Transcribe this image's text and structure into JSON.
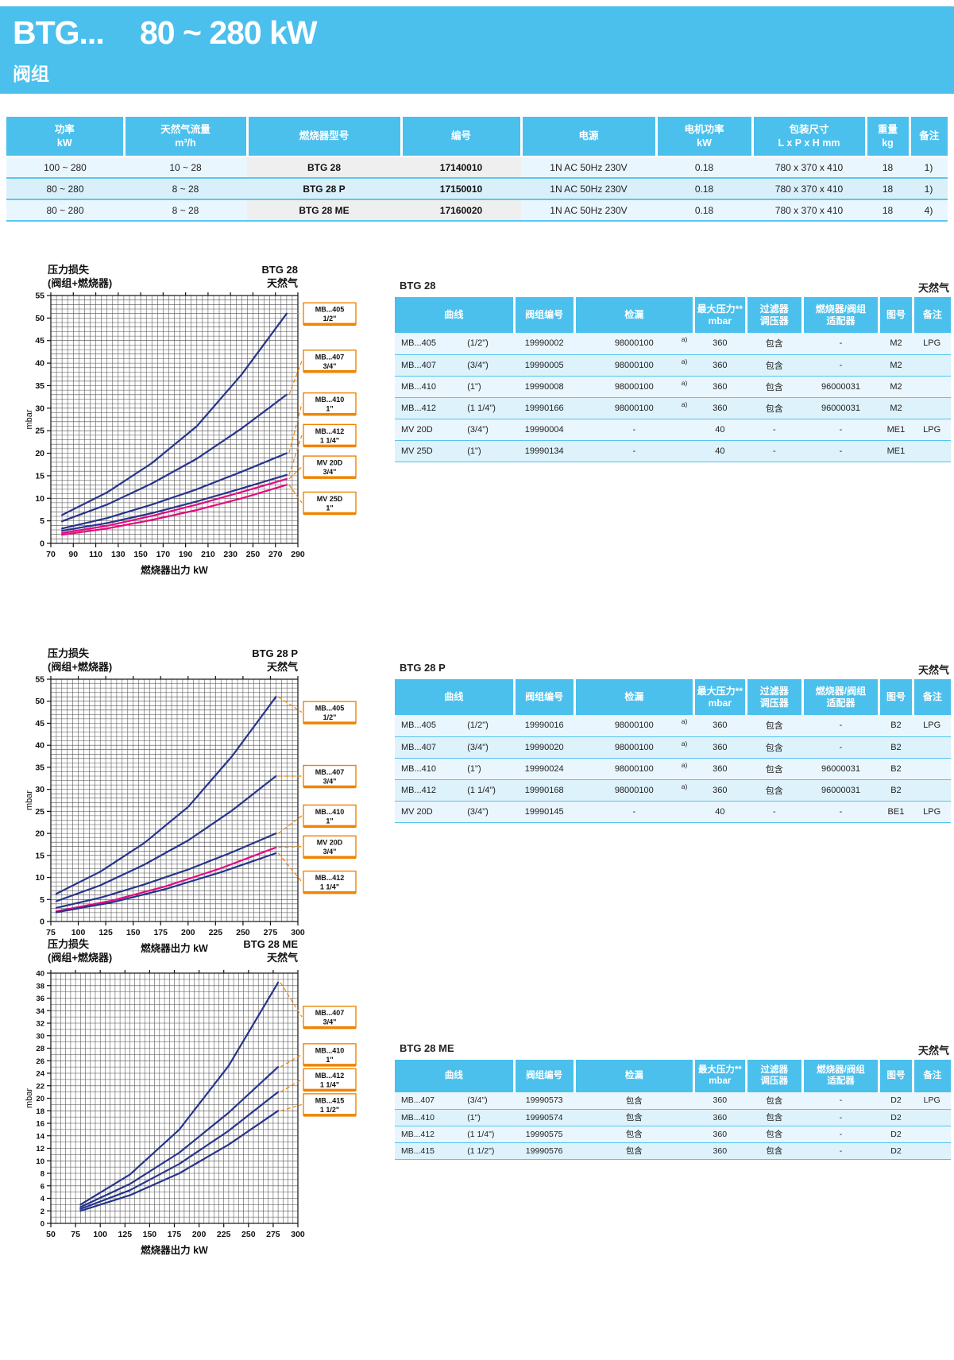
{
  "colors": {
    "cyan": "#4BC0ED",
    "row_light_blue": "#EAF6FD",
    "row_mid_blue": "#D9F0FA",
    "gray_column": "#EFEFEF",
    "curve_navy": "#27348B",
    "curve_pink": "#E5097F",
    "legend_orange": "#F08300"
  },
  "banner": {
    "model": "BTG...",
    "power_range": "80 ~ 280 kW",
    "subtitle": "阀组"
  },
  "top_table": {
    "headers": [
      "功率\nkW",
      "天然气流量\nm³/h",
      "燃烧器型号",
      "编号",
      "电源",
      "电机功率\nkW",
      "包装尺寸\nL x P x H  mm",
      "重量\nkg",
      "备注"
    ],
    "rows": [
      [
        "100 ~ 280",
        "10 ~ 28",
        "BTG 28",
        "17140010",
        "1N AC 50Hz 230V",
        "0.18",
        "780 x 370 x 410",
        "18",
        "1)"
      ],
      [
        "80 ~ 280",
        "8 ~ 28",
        "BTG 28 P",
        "17150010",
        "1N AC 50Hz 230V",
        "0.18",
        "780 x 370 x 410",
        "18",
        "1)"
      ],
      [
        "80 ~ 280",
        "8 ~ 28",
        "BTG 28 ME",
        "17160020",
        "1N AC 50Hz 230V",
        "0.18",
        "780 x 370 x 410",
        "18",
        "4)"
      ]
    ]
  },
  "sections": [
    {
      "title": "BTG 28",
      "gas": "天然气",
      "headers": {
        "curve": "曲线",
        "group_no": "阀组编号",
        "leak": "检漏",
        "max_pressure": "最大压力**\nmbar",
        "filter": "过滤器\n调压器",
        "adapter": "燃烧器/阀组\n适配器",
        "figure": "图号",
        "note": "备注"
      },
      "rows": [
        {
          "model": "MB...405",
          "size": "(1/2\")",
          "group_no": "19990002",
          "leak": "98000100",
          "leak_sup": "a)",
          "max_pressure": "360",
          "filter": "包含",
          "adapter": "-",
          "figure": "M2",
          "note": "LPG"
        },
        {
          "model": "MB...407",
          "size": "(3/4\")",
          "group_no": "19990005",
          "leak": "98000100",
          "leak_sup": "a)",
          "max_pressure": "360",
          "filter": "包含",
          "adapter": "-",
          "figure": "M2",
          "note": ""
        },
        {
          "model": "MB...410",
          "size": "(1\")",
          "group_no": "19990008",
          "leak": "98000100",
          "leak_sup": "a)",
          "max_pressure": "360",
          "filter": "包含",
          "adapter": "96000031",
          "figure": "M2",
          "note": ""
        },
        {
          "model": "MB...412",
          "size": "(1 1/4\")",
          "group_no": "19990166",
          "leak": "98000100",
          "leak_sup": "a)",
          "max_pressure": "360",
          "filter": "包含",
          "adapter": "96000031",
          "figure": "M2",
          "note": ""
        },
        {
          "model": "MV  20D",
          "size": "(3/4\")",
          "group_no": "19990004",
          "leak": "-",
          "leak_sup": "",
          "max_pressure": "40",
          "filter": "-",
          "adapter": "-",
          "figure": "ME1",
          "note": "LPG"
        },
        {
          "model": "MV  25D",
          "size": "(1\")",
          "group_no": "19990134",
          "leak": "-",
          "leak_sup": "",
          "max_pressure": "40",
          "filter": "-",
          "adapter": "-",
          "figure": "ME1",
          "note": ""
        }
      ]
    },
    {
      "title": "BTG 28 P",
      "gas": "天然气",
      "headers": {
        "curve": "曲线",
        "group_no": "阀组编号",
        "leak": "检漏",
        "max_pressure": "最大压力**\nmbar",
        "filter": "过滤器\n调压器",
        "adapter": "燃烧器/阀组\n适配器",
        "figure": "图号",
        "note": "备注"
      },
      "rows": [
        {
          "model": "MB...405",
          "size": "(1/2\")",
          "group_no": "19990016",
          "leak": "98000100",
          "leak_sup": "a)",
          "max_pressure": "360",
          "filter": "包含",
          "adapter": "-",
          "figure": "B2",
          "note": "LPG"
        },
        {
          "model": "MB...407",
          "size": "(3/4\")",
          "group_no": "19990020",
          "leak": "98000100",
          "leak_sup": "a)",
          "max_pressure": "360",
          "filter": "包含",
          "adapter": "-",
          "figure": "B2",
          "note": ""
        },
        {
          "model": "MB...410",
          "size": "(1\")",
          "group_no": "19990024",
          "leak": "98000100",
          "leak_sup": "a)",
          "max_pressure": "360",
          "filter": "包含",
          "adapter": "96000031",
          "figure": "B2",
          "note": ""
        },
        {
          "model": "MB...412",
          "size": "(1 1/4\")",
          "group_no": "19990168",
          "leak": "98000100",
          "leak_sup": "a)",
          "max_pressure": "360",
          "filter": "包含",
          "adapter": "96000031",
          "figure": "B2",
          "note": ""
        },
        {
          "model": "MV  20D",
          "size": "(3/4\")",
          "group_no": "19990145",
          "leak": "-",
          "leak_sup": "",
          "max_pressure": "40",
          "filter": "-",
          "adapter": "-",
          "figure": "BE1",
          "note": "LPG"
        }
      ]
    },
    {
      "title": "BTG 28 ME",
      "gas": "天然气",
      "headers": {
        "curve": "曲线",
        "group_no": "阀组编号",
        "leak": "检漏",
        "max_pressure": "最大压力**\nmbar",
        "filter": "过滤器\n调压器",
        "adapter": "燃烧器/阀组\n适配器",
        "figure": "图号",
        "note": "备注"
      },
      "rows": [
        {
          "model": "MB...407",
          "size": "(3/4\")",
          "group_no": "19990573",
          "leak": "包含",
          "leak_sup": "",
          "max_pressure": "360",
          "filter": "包含",
          "adapter": "-",
          "figure": "D2",
          "note": "LPG"
        },
        {
          "model": "MB...410",
          "size": "(1\")",
          "group_no": "19990574",
          "leak": "包含",
          "leak_sup": "",
          "max_pressure": "360",
          "filter": "包含",
          "adapter": "-",
          "figure": "D2",
          "note": ""
        },
        {
          "model": "MB...412",
          "size": "(1 1/4\")",
          "group_no": "19990575",
          "leak": "包含",
          "leak_sup": "",
          "max_pressure": "360",
          "filter": "包含",
          "adapter": "-",
          "figure": "D2",
          "note": ""
        },
        {
          "model": "MB...415",
          "size": "(1 1/2\")",
          "group_no": "19990576",
          "leak": "包含",
          "leak_sup": "",
          "max_pressure": "360",
          "filter": "包含",
          "adapter": "-",
          "figure": "D2",
          "note": ""
        }
      ]
    }
  ],
  "chart_data": [
    {
      "type": "line",
      "title_left": [
        "压力损失",
        "(阀组+燃烧器)"
      ],
      "title_right": [
        "BTG 28",
        "天然气"
      ],
      "ylabel": "mbar",
      "xlabel": "燃烧器出力  kW",
      "xlim": [
        70,
        290
      ],
      "xtick_step": 20,
      "xgrid_step": 5,
      "ylim": [
        0,
        55
      ],
      "ytick_step": 5,
      "ygrid_step": 1,
      "grid": true,
      "legend_position": "right",
      "series": [
        {
          "name": "MB...405",
          "size": "1/2\"",
          "color": "#27348B",
          "legend_y": 51,
          "points": [
            [
              80,
              6.3
            ],
            [
              120,
              11.3
            ],
            [
              160,
              17.8
            ],
            [
              200,
              26
            ],
            [
              240,
              37.5
            ],
            [
              280,
              51
            ]
          ]
        },
        {
          "name": "MB...407",
          "size": "3/4\"",
          "color": "#27348B",
          "legend_y": 40.5,
          "points": [
            [
              80,
              4.9
            ],
            [
              120,
              8.6
            ],
            [
              160,
              13.3
            ],
            [
              200,
              18.8
            ],
            [
              240,
              25.5
            ],
            [
              280,
              33
            ]
          ]
        },
        {
          "name": "MB...410",
          "size": "1\"",
          "color": "#27348B",
          "legend_y": 31,
          "points": [
            [
              80,
              3.3
            ],
            [
              120,
              5.6
            ],
            [
              160,
              8.6
            ],
            [
              200,
              12
            ],
            [
              240,
              15.9
            ],
            [
              280,
              20
            ]
          ]
        },
        {
          "name": "MB...412",
          "size": "1 1/4\"",
          "color": "#27348B",
          "legend_y": 24,
          "points": [
            [
              80,
              2.8
            ],
            [
              120,
              4.5
            ],
            [
              160,
              6.7
            ],
            [
              200,
              9.3
            ],
            [
              240,
              12.2
            ],
            [
              280,
              15.2
            ]
          ]
        },
        {
          "name": "MV  20D",
          "size": "3/4\"",
          "color": "#E5097F",
          "legend_y": 17,
          "points": [
            [
              80,
              2.3
            ],
            [
              120,
              3.9
            ],
            [
              160,
              6.1
            ],
            [
              200,
              8.6
            ],
            [
              240,
              11.4
            ],
            [
              280,
              14.3
            ]
          ]
        },
        {
          "name": "MV  25D",
          "size": "1\"",
          "color": "#E5097F",
          "legend_y": 9,
          "points": [
            [
              80,
              1.9
            ],
            [
              120,
              3.3
            ],
            [
              160,
              5.2
            ],
            [
              200,
              7.4
            ],
            [
              240,
              10
            ],
            [
              280,
              13
            ]
          ]
        }
      ]
    },
    {
      "type": "line",
      "title_left": [
        "压力损失",
        "(阀组+燃烧器)"
      ],
      "title_right": [
        "BTG 28 P",
        "天然气"
      ],
      "ylabel": "mbar",
      "xlabel": "燃烧器出力  kW",
      "xlim": [
        75,
        300
      ],
      "xtick_step": 25,
      "xgrid_step": 5,
      "ylim": [
        0,
        55
      ],
      "ytick_step": 5,
      "ygrid_step": 1,
      "grid": true,
      "legend_position": "right",
      "series": [
        {
          "name": "MB...405",
          "size": "1/2\"",
          "color": "#27348B",
          "legend_y": 47.5,
          "points": [
            [
              80,
              6.3
            ],
            [
              120,
              11.3
            ],
            [
              160,
              17.8
            ],
            [
              200,
              26
            ],
            [
              240,
              37.5
            ],
            [
              280,
              51
            ]
          ]
        },
        {
          "name": "MB...407",
          "size": "3/4\"",
          "color": "#27348B",
          "legend_y": 33,
          "points": [
            [
              80,
              4.6
            ],
            [
              120,
              8.2
            ],
            [
              160,
              12.9
            ],
            [
              200,
              18.4
            ],
            [
              240,
              25.2
            ],
            [
              280,
              33
            ]
          ]
        },
        {
          "name": "MB...410",
          "size": "1\"",
          "color": "#27348B",
          "legend_y": 24,
          "points": [
            [
              80,
              3.1
            ],
            [
              120,
              5.4
            ],
            [
              160,
              8.4
            ],
            [
              200,
              11.8
            ],
            [
              240,
              15.7
            ],
            [
              280,
              20
            ]
          ]
        },
        {
          "name": "MV  20D",
          "size": "3/4\"",
          "color": "#E5097F",
          "legend_y": 17,
          "points": [
            [
              80,
              2.3
            ],
            [
              130,
              4.7
            ],
            [
              180,
              8
            ],
            [
              230,
              12.1
            ],
            [
              280,
              16.8
            ]
          ]
        },
        {
          "name": "MB...412",
          "size": "1 1/4\"",
          "color": "#27348B",
          "legend_y": 9,
          "points": [
            [
              80,
              2.1
            ],
            [
              130,
              4.3
            ],
            [
              180,
              7.4
            ],
            [
              230,
              11.2
            ],
            [
              280,
              15.5
            ]
          ]
        }
      ]
    },
    {
      "type": "line",
      "title_left": [
        "压力损失",
        "(阀组+燃烧器)"
      ],
      "title_right": [
        "BTG 28 ME",
        "天然气"
      ],
      "ylabel": "mbar",
      "xlabel": "燃烧器出力  kW",
      "xlim": [
        50,
        300
      ],
      "xtick_step": 25,
      "xgrid_step": 5,
      "ylim": [
        0,
        40
      ],
      "ytick_step": 2,
      "ygrid_step": 1,
      "grid": true,
      "legend_position": "right",
      "series": [
        {
          "name": "MB...407",
          "size": "3/4\"",
          "color": "#27348B",
          "legend_y": 33,
          "points": [
            [
              80,
              3
            ],
            [
              130,
              7.8
            ],
            [
              180,
              15
            ],
            [
              230,
              25.2
            ],
            [
              280,
              38.5
            ]
          ]
        },
        {
          "name": "MB...410",
          "size": "1\"",
          "color": "#27348B",
          "legend_y": 27,
          "points": [
            [
              80,
              2.6
            ],
            [
              130,
              6.3
            ],
            [
              180,
              11.3
            ],
            [
              230,
              17.7
            ],
            [
              280,
              25
            ]
          ]
        },
        {
          "name": "MB...412",
          "size": "1 1/4\"",
          "color": "#27348B",
          "legend_y": 23,
          "points": [
            [
              80,
              2.3
            ],
            [
              130,
              5.3
            ],
            [
              180,
              9.5
            ],
            [
              230,
              14.8
            ],
            [
              280,
              21
            ]
          ]
        },
        {
          "name": "MB...415",
          "size": "1 1/2\"",
          "color": "#27348B",
          "legend_y": 19,
          "points": [
            [
              80,
              2
            ],
            [
              130,
              4.5
            ],
            [
              180,
              8
            ],
            [
              230,
              12.6
            ],
            [
              280,
              18
            ]
          ]
        }
      ]
    }
  ]
}
